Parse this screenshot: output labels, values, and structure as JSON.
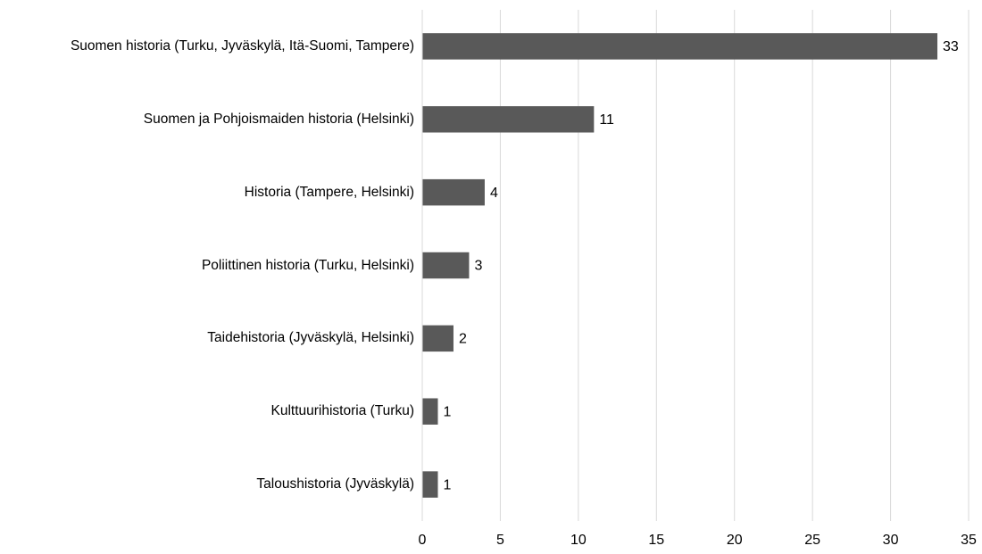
{
  "chart_data": {
    "type": "bar",
    "orientation": "horizontal",
    "categories": [
      "Suomen historia (Turku, Jyväskylä, Itä-Suomi, Tampere)",
      "Suomen ja Pohjoismaiden historia (Helsinki)",
      "Historia (Tampere, Helsinki)",
      "Poliittinen historia (Turku, Helsinki)",
      "Taidehistoria (Jyväskylä, Helsinki)",
      "Kulttuurihistoria (Turku)",
      "Taloushistoria (Jyväskylä)"
    ],
    "values": [
      33,
      11,
      4,
      3,
      2,
      1,
      1
    ],
    "color": "#595959",
    "xlim": [
      0,
      35
    ],
    "xticks": [
      0,
      5,
      10,
      15,
      20,
      25,
      30,
      35
    ],
    "grid": true
  }
}
